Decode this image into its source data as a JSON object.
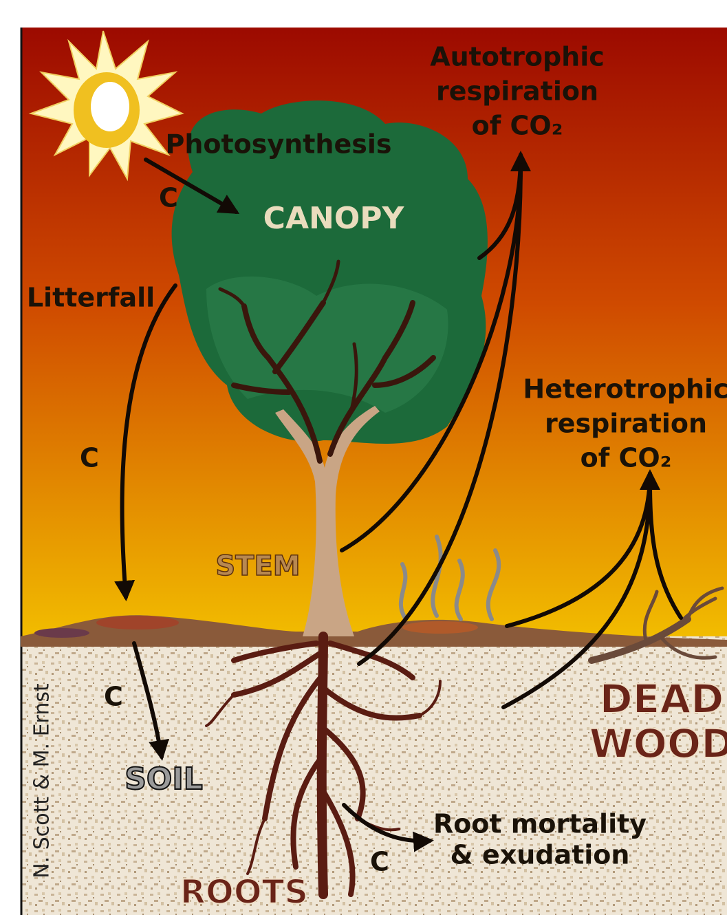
{
  "autotrophic_respiration": {
    "lines": [
      "Autotrophic",
      "respiration",
      "of CO₂"
    ]
  },
  "photosynthesis": "Photosynthesis",
  "photosynthesis_flux": "C",
  "canopy": "CANOPY",
  "litterfall": "Litterfall",
  "litterfall_flux": "C",
  "heterotrophic_respiration": {
    "lines": [
      "Heterotrophic",
      "respiration",
      "of CO₂"
    ]
  },
  "stem": "STEM",
  "soil_flux": "C",
  "soil": "SOIL",
  "dead_wood": {
    "lines": [
      "DEAD",
      "WOOD"
    ]
  },
  "root_mortality": {
    "lines": [
      "Root mortality",
      "& exudation"
    ]
  },
  "root_flux": "C",
  "roots": "ROOTS",
  "credit": "N. Scott & M. Ernst"
}
